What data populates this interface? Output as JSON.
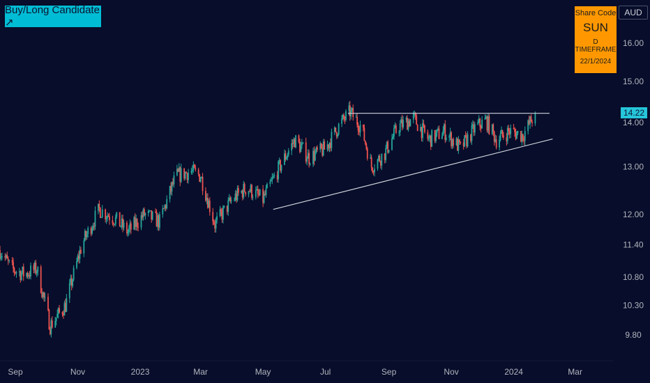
{
  "badge": {
    "label": "Buy/Long Candidate ↗"
  },
  "info_box": {
    "line1": "Share Code",
    "line2": "SUN",
    "line3": "D TIMEFRAME",
    "line4": "22/1/2024"
  },
  "currency": "AUD",
  "last_price_label": "14.22",
  "colors": {
    "background": "#070d2a",
    "up": "#26a69a",
    "down": "#ef5350",
    "badge": "#00bcd4",
    "info": "#ff9800",
    "trendline": "#d1d4dc"
  },
  "chart_data": {
    "type": "candlestick",
    "title": "",
    "y_scale": "log",
    "y_ticks": [
      "16.00",
      "15.00",
      "14.00",
      "13.00",
      "12.00",
      "11.40",
      "10.80",
      "10.30",
      "9.80"
    ],
    "y_tick_values": [
      16.0,
      15.0,
      14.0,
      13.0,
      12.0,
      11.4,
      10.8,
      10.3,
      9.8
    ],
    "x_ticks": [
      "Sep",
      "Nov",
      "2023",
      "Mar",
      "May",
      "Jul",
      "Sep",
      "Nov",
      "2024",
      "Mar"
    ],
    "x_tick_dates": [
      "2022-09-01",
      "2022-11-01",
      "2023-01-01",
      "2023-03-01",
      "2023-05-01",
      "2023-07-01",
      "2023-09-01",
      "2023-11-01",
      "2024-01-01",
      "2024-03-01"
    ],
    "x_range": [
      "2022-08-17",
      "2024-04-05"
    ],
    "y_range": [
      9.45,
      17.1
    ],
    "last_price": 14.22,
    "series": [
      {
        "name": "",
        "x": [
          "2022-08-17",
          "2022-08-28",
          "2022-09-10",
          "2022-09-22",
          "2022-10-05",
          "2022-10-20",
          "2022-11-05",
          "2022-11-22",
          "2022-12-08",
          "2022-12-20",
          "2023-01-05",
          "2023-01-20",
          "2023-02-05",
          "2023-02-20",
          "2023-03-01",
          "2023-03-15",
          "2023-04-01",
          "2023-04-15",
          "2023-05-01",
          "2023-05-15",
          "2023-06-01",
          "2023-06-15",
          "2023-07-01",
          "2023-07-15",
          "2023-07-25",
          "2023-08-05",
          "2023-08-15",
          "2023-08-28",
          "2023-09-10",
          "2023-09-25",
          "2023-10-10",
          "2023-10-25",
          "2023-11-10",
          "2023-11-25",
          "2023-12-05",
          "2023-12-15",
          "2023-12-28",
          "2024-01-10",
          "2024-01-22"
        ],
        "y": [
          11.3,
          10.95,
          10.85,
          10.95,
          9.95,
          10.3,
          11.4,
          12.1,
          11.9,
          11.65,
          12.0,
          11.85,
          12.8,
          12.9,
          12.8,
          11.8,
          12.3,
          12.55,
          12.3,
          12.9,
          13.6,
          13.2,
          13.4,
          13.95,
          14.25,
          13.9,
          13.0,
          13.3,
          13.9,
          14.1,
          13.6,
          13.8,
          13.4,
          13.9,
          14.05,
          13.6,
          13.8,
          13.7,
          14.22
        ]
      }
    ],
    "annotations": [
      {
        "type": "horizontal-resistance",
        "from": "2023-07-23",
        "to": "2024-02-05",
        "value": 14.22
      },
      {
        "type": "ascending-support",
        "from": "2023-05-11",
        "from_value": 12.1,
        "to": "2024-02-08",
        "to_value": 13.62
      }
    ],
    "legend": "none",
    "grid": false
  }
}
